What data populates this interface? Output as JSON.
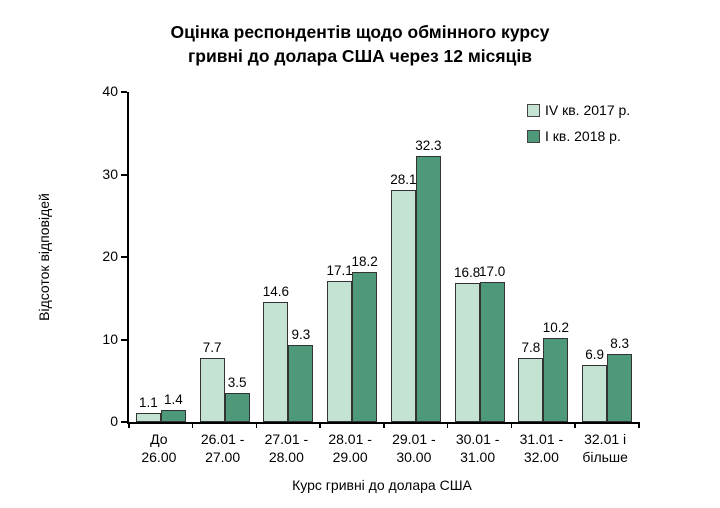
{
  "title": {
    "line1": "Оцінка респондентів щодо обмінного курсу",
    "line2": "гривні до долара США через 12 місяців"
  },
  "colors": {
    "series_1": "#c5e3d3",
    "series_2": "#4d997a",
    "bar_border": "#333333",
    "axis": "#000000"
  },
  "chart_data": {
    "type": "bar",
    "title": "Оцінка респондентів щодо обмінного курсу гривні до долара США через 12 місяців",
    "categories": [
      "До 26.00",
      "26.01 - 27.00",
      "27.01 - 28.00",
      "28.01 - 29.00",
      "29.01 - 30.00",
      "30.01 - 31.00",
      "31.01 - 32.00",
      "32.01 і більше"
    ],
    "category_lines": [
      [
        "До",
        "26.00"
      ],
      [
        "26.01 -",
        "27.00"
      ],
      [
        "27.01 -",
        "28.00"
      ],
      [
        "28.01 -",
        "29.00"
      ],
      [
        "29.01 -",
        "30.00"
      ],
      [
        "30.01 -",
        "31.00"
      ],
      [
        "31.01 -",
        "32.00"
      ],
      [
        "32.01 і",
        "більше"
      ]
    ],
    "series": [
      {
        "name": "IV кв. 2017 р.",
        "color": "#c5e3d3",
        "values": [
          1.1,
          7.7,
          14.6,
          17.1,
          28.1,
          16.8,
          7.8,
          6.9
        ]
      },
      {
        "name": "І кв. 2018 р.",
        "color": "#4d997a",
        "values": [
          1.4,
          3.5,
          9.3,
          18.2,
          32.3,
          17.0,
          10.2,
          8.3
        ]
      }
    ],
    "xlabel": "Курс гривні до долара США",
    "ylabel": "Відсоток відповідей",
    "ylim": [
      0,
      40
    ],
    "yticks": [
      0,
      10,
      20,
      30,
      40
    ],
    "legend_position": "top-right",
    "grid": false,
    "value_labels_decimals": 1
  }
}
